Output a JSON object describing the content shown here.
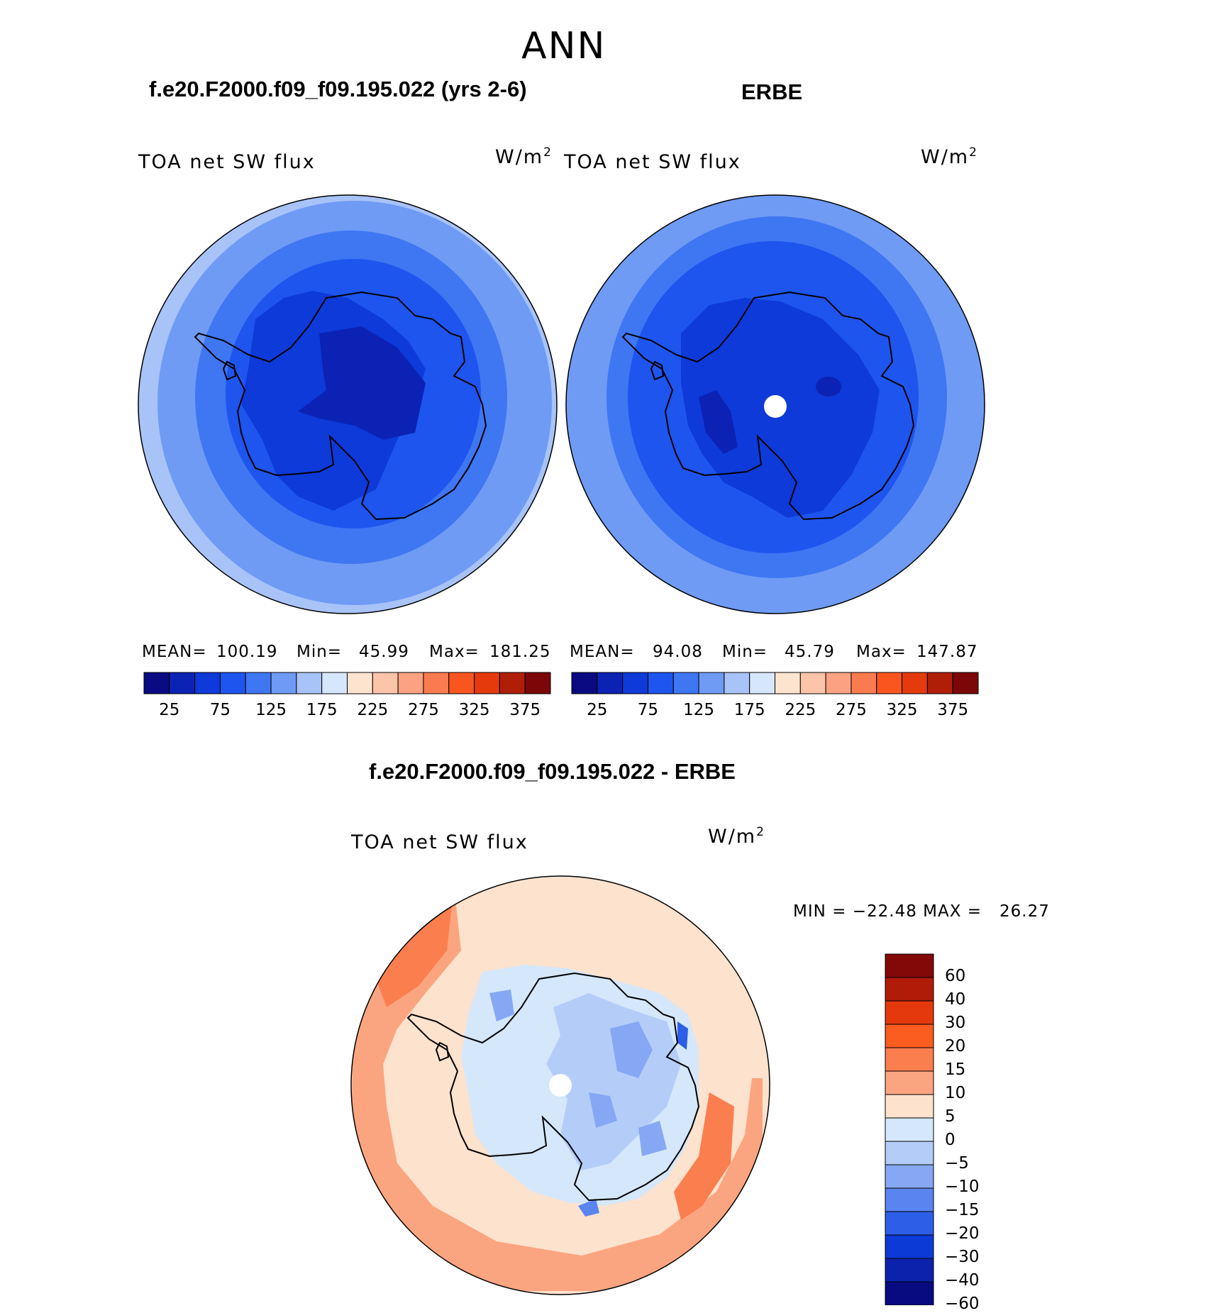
{
  "figure": {
    "season": "ANN"
  },
  "panels": [
    {
      "title": "f.e20.F2000.f09_f09.195.022 (yrs 2-6)",
      "variable": "TOA net SW flux",
      "units_base": "W/m",
      "units_exp": "2",
      "stats": {
        "mean_label": "MEAN=",
        "mean": "100.19",
        "min_label": "Min=",
        "min": "45.99",
        "max_label": "Max=",
        "max": "181.25"
      }
    },
    {
      "title": "ERBE",
      "variable": "TOA net SW flux",
      "units_base": "W/m",
      "units_exp": "2",
      "stats": {
        "mean_label": "MEAN=",
        "mean": "94.08",
        "min_label": "Min=",
        "min": "45.79",
        "max_label": "Max=",
        "max": "147.87"
      }
    },
    {
      "title": "f.e20.F2000.f09_f09.195.022 - ERBE",
      "variable": "TOA net SW flux",
      "units_base": "W/m",
      "units_exp": "2",
      "minmax": "MIN = −22.48 MAX =   26.27"
    }
  ],
  "colorbar_abs": {
    "colors": [
      "#0a0a82",
      "#0b22b4",
      "#0d3ad8",
      "#1e55ee",
      "#3f76f2",
      "#6f9bf5",
      "#a8c3f8",
      "#d6e6fb",
      "#fde4cf",
      "#fcc4a8",
      "#fca282",
      "#fa7b50",
      "#f9561f",
      "#e53a0c",
      "#b01e08",
      "#7c0708"
    ],
    "tick_labels": [
      "25",
      "75",
      "125",
      "175",
      "225",
      "275",
      "325",
      "375"
    ]
  },
  "colorbar_diff": {
    "colors_top_to_bottom": [
      "#830808",
      "#b11c08",
      "#e4380d",
      "#fb5c1f",
      "#fb7e4f",
      "#fba580",
      "#fde2cd",
      "#d5e7fb",
      "#b4cdf8",
      "#86a8f4",
      "#5a85f1",
      "#2c5ee8",
      "#0b3ad6",
      "#0b22ac",
      "#080a80"
    ],
    "tick_labels": [
      "60",
      "40",
      "30",
      "20",
      "15",
      "10",
      "5",
      "0",
      "−5",
      "−10",
      "−15",
      "−20",
      "−30",
      "−40",
      "−60"
    ]
  }
}
